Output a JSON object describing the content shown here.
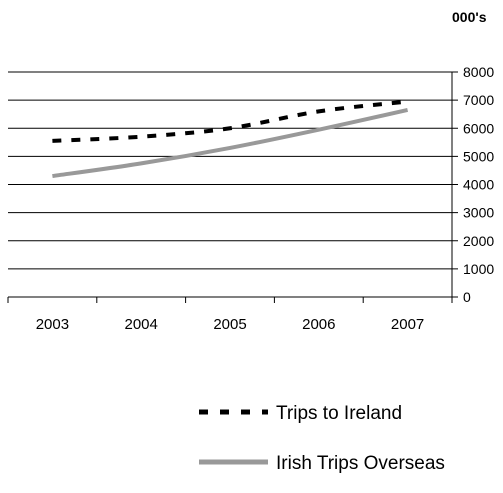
{
  "chart_data": {
    "type": "line",
    "title": "",
    "xlabel": "",
    "ylabel": "",
    "unit_label": "000's",
    "categories": [
      "2003",
      "2004",
      "2005",
      "2006",
      "2007"
    ],
    "ylim": [
      0,
      8000
    ],
    "yticks": [
      0,
      1000,
      2000,
      3000,
      4000,
      5000,
      6000,
      7000,
      8000
    ],
    "yaxis_side": "right",
    "grid": "horizontal",
    "legend_position": "bottom",
    "series": [
      {
        "name": "Trips to Ireland",
        "values": [
          5550,
          5700,
          6000,
          6600,
          6950
        ],
        "color": "#000000",
        "style": "dashed"
      },
      {
        "name": "Irish Trips Overseas",
        "values": [
          4300,
          4750,
          5300,
          5950,
          6650
        ],
        "color": "#999999",
        "style": "solid"
      }
    ]
  }
}
